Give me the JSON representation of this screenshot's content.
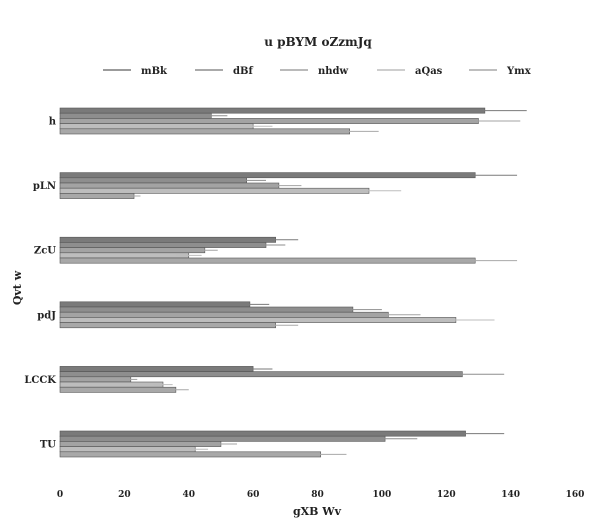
{
  "chart_data": {
    "type": "bar",
    "orientation": "horizontal",
    "title": "u pBYM oZzmJq",
    "xlabel": "gXB Wv",
    "ylabel": "Qvt w",
    "xlim": [
      0,
      160
    ],
    "xticks": [
      0,
      20,
      40,
      60,
      80,
      100,
      120,
      140,
      160
    ],
    "grid": false,
    "legend_position": "top",
    "categories": [
      "h",
      "pLN",
      "ZcU",
      "pdJ",
      "LCCK",
      "TU"
    ],
    "series": [
      {
        "name": "mBk",
        "color": "#7a7a7a",
        "values": [
          132,
          129,
          67,
          59,
          60,
          126
        ],
        "errors": [
          13,
          13,
          7,
          6,
          6,
          12
        ]
      },
      {
        "name": "dBf",
        "color": "#8e8e8e",
        "values": [
          47,
          58,
          64,
          91,
          125,
          101
        ],
        "errors": [
          5,
          6,
          6,
          9,
          13,
          10
        ]
      },
      {
        "name": "nhdw",
        "color": "#a3a3a3",
        "values": [
          130,
          68,
          45,
          102,
          22,
          50
        ],
        "errors": [
          13,
          7,
          4,
          10,
          2,
          5
        ]
      },
      {
        "name": "aQas",
        "color": "#bdbdbd",
        "values": [
          60,
          96,
          40,
          123,
          32,
          42
        ],
        "errors": [
          6,
          10,
          4,
          12,
          3,
          4
        ]
      },
      {
        "name": "Ymx",
        "color": "#a8a8a8",
        "values": [
          90,
          23,
          129,
          67,
          36,
          81
        ],
        "errors": [
          9,
          2,
          13,
          7,
          4,
          8
        ]
      }
    ]
  }
}
